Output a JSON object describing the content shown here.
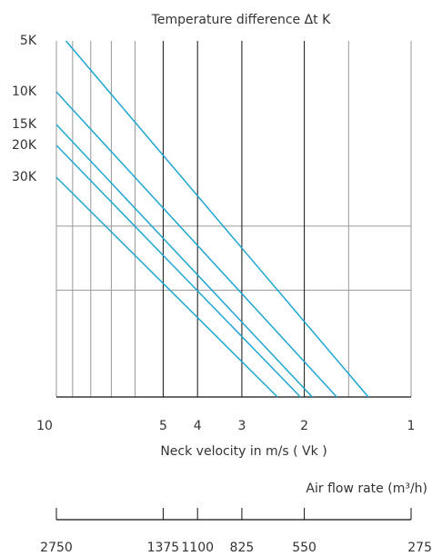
{
  "chart_data": {
    "type": "line",
    "title": "Temperature difference Δt K",
    "xlabel": "Neck velocity in m/s  ( Vk )",
    "x_log": true,
    "xlim": [
      10,
      1
    ],
    "xticks": [
      10,
      5,
      4,
      3,
      2,
      1
    ],
    "xminor": [
      9,
      8,
      7,
      6,
      1.5
    ],
    "ylim": [
      0,
      100
    ],
    "hgrid": [
      30,
      48
    ],
    "series": [
      {
        "name": "5K",
        "color": "#1ea6d2",
        "x": [
          9.4,
          1.32
        ],
        "values": [
          100,
          0
        ]
      },
      {
        "name": "10K",
        "color": "#1ea6d2",
        "x": [
          10,
          1.62
        ],
        "values": [
          85.7,
          0
        ]
      },
      {
        "name": "15K",
        "color": "#1ea6d2",
        "x": [
          10,
          1.9
        ],
        "values": [
          76.5,
          0
        ]
      },
      {
        "name": "20K",
        "color": "#1ea6d2",
        "x": [
          10,
          2.05
        ],
        "values": [
          70.7,
          0
        ]
      },
      {
        "name": "30K",
        "color": "#1ea6d2",
        "x": [
          10,
          2.38
        ],
        "values": [
          61.7,
          0
        ]
      }
    ],
    "x2label": "Air flow rate (m³/h)",
    "x2ticks": [
      {
        "value": 10,
        "label": "2750"
      },
      {
        "value": 5,
        "label": "1375"
      },
      {
        "value": 4,
        "label": "1100"
      },
      {
        "value": 3,
        "label": "825"
      },
      {
        "value": 2,
        "label": "550"
      },
      {
        "value": 1,
        "label": "275"
      }
    ]
  }
}
